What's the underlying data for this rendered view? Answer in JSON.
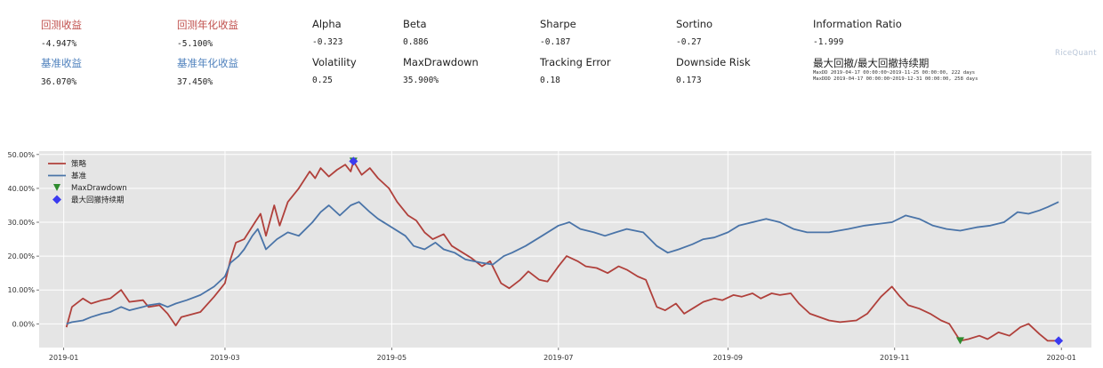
{
  "metrics": {
    "row1": [
      {
        "label": "回测收益",
        "value": "-4.947%",
        "color": "#c0504d"
      },
      {
        "label": "回测年化收益",
        "value": "-5.100%",
        "color": "#c0504d"
      },
      {
        "label": "Alpha",
        "value": "-0.323",
        "color": "#222222"
      },
      {
        "label": "Beta",
        "value": "0.886",
        "color": "#222222"
      },
      {
        "label": "Sharpe",
        "value": "-0.187",
        "color": "#222222"
      },
      {
        "label": "Sortino",
        "value": "-0.27",
        "color": "#222222"
      },
      {
        "label": "Information Ratio",
        "value": "-1.999",
        "color": "#222222"
      }
    ],
    "row2": [
      {
        "label": "基准收益",
        "value": "36.070%",
        "color": "#4f81bd"
      },
      {
        "label": "基准年化收益",
        "value": "37.450%",
        "color": "#4f81bd"
      },
      {
        "label": "Volatility",
        "value": "0.25",
        "color": "#222222"
      },
      {
        "label": "MaxDrawdown",
        "value": "35.900%",
        "color": "#222222"
      },
      {
        "label": "Tracking Error",
        "value": "0.18",
        "color": "#222222"
      },
      {
        "label": "Downside Risk",
        "value": "0.173",
        "color": "#222222"
      }
    ],
    "drawdown_title": "最大回撤/最大回撤持续期",
    "maxdd_line": "MaxDD  2019-04-17 00:00:00~2019-11-25 00:00:00, 222 days",
    "maxddd_line": "MaxDDD 2019-04-17 00:00:00~2019-12-31 00:00:00, 258 days"
  },
  "watermark": "RiceQuant",
  "chart_data": {
    "type": "line",
    "x_ticks": [
      "2019-01",
      "2019-03",
      "2019-05",
      "2019-07",
      "2019-09",
      "2019-11",
      "2020-01"
    ],
    "y_ticks": [
      "50.00%",
      "40.00%",
      "30.00%",
      "20.00%",
      "10.00%",
      "0.00%"
    ],
    "ylim": [
      -7,
      51
    ],
    "xlim": [
      "2018-12-23",
      "2020-01-12"
    ],
    "grid": true,
    "legend_position": "top-left",
    "legend": [
      "策略",
      "基准",
      "MaxDrawdown",
      "最大回撤持续期"
    ],
    "colors": {
      "strategy": "#b0403b",
      "benchmark": "#4a74a8",
      "maxdrawdown": "#2e8b2e",
      "maxddd": "#3b3bf0",
      "plot_bg": "#e5e5e5"
    },
    "series": [
      {
        "name": "策略",
        "points": [
          [
            "2019-01-02",
            -1
          ],
          [
            "2019-01-04",
            5
          ],
          [
            "2019-01-08",
            7.5
          ],
          [
            "2019-01-11",
            6
          ],
          [
            "2019-01-15",
            7
          ],
          [
            "2019-01-18",
            7.5
          ],
          [
            "2019-01-22",
            10
          ],
          [
            "2019-01-25",
            6.5
          ],
          [
            "2019-01-30",
            7
          ],
          [
            "2019-02-01",
            5
          ],
          [
            "2019-02-05",
            5.5
          ],
          [
            "2019-02-08",
            3
          ],
          [
            "2019-02-11",
            -0.5
          ],
          [
            "2019-02-13",
            2
          ],
          [
            "2019-02-20",
            3.5
          ],
          [
            "2019-02-25",
            8
          ],
          [
            "2019-02-27",
            10
          ],
          [
            "2019-03-01",
            12
          ],
          [
            "2019-03-03",
            19
          ],
          [
            "2019-03-05",
            24
          ],
          [
            "2019-03-08",
            25
          ],
          [
            "2019-03-12",
            30
          ],
          [
            "2019-03-14",
            32.5
          ],
          [
            "2019-03-16",
            26
          ],
          [
            "2019-03-19",
            35
          ],
          [
            "2019-03-21",
            29
          ],
          [
            "2019-03-24",
            36
          ],
          [
            "2019-03-28",
            40
          ],
          [
            "2019-04-01",
            45
          ],
          [
            "2019-04-03",
            43
          ],
          [
            "2019-04-05",
            46
          ],
          [
            "2019-04-08",
            43.5
          ],
          [
            "2019-04-11",
            45.5
          ],
          [
            "2019-04-14",
            47
          ],
          [
            "2019-04-16",
            45
          ],
          [
            "2019-04-17",
            48
          ],
          [
            "2019-04-20",
            44
          ],
          [
            "2019-04-23",
            46
          ],
          [
            "2019-04-26",
            43
          ],
          [
            "2019-04-30",
            40
          ],
          [
            "2019-05-03",
            36
          ],
          [
            "2019-05-07",
            32
          ],
          [
            "2019-05-10",
            30.5
          ],
          [
            "2019-05-13",
            27
          ],
          [
            "2019-05-16",
            25
          ],
          [
            "2019-05-20",
            26.5
          ],
          [
            "2019-05-23",
            23
          ],
          [
            "2019-05-27",
            21
          ],
          [
            "2019-05-30",
            19.5
          ],
          [
            "2019-06-03",
            17
          ],
          [
            "2019-06-06",
            18.5
          ],
          [
            "2019-06-10",
            12
          ],
          [
            "2019-06-13",
            10.5
          ],
          [
            "2019-06-17",
            13
          ],
          [
            "2019-06-20",
            15.5
          ],
          [
            "2019-06-24",
            13
          ],
          [
            "2019-06-27",
            12.5
          ],
          [
            "2019-07-01",
            17
          ],
          [
            "2019-07-04",
            20
          ],
          [
            "2019-07-08",
            18.5
          ],
          [
            "2019-07-11",
            17
          ],
          [
            "2019-07-15",
            16.5
          ],
          [
            "2019-07-19",
            15
          ],
          [
            "2019-07-23",
            17
          ],
          [
            "2019-07-26",
            16
          ],
          [
            "2019-07-30",
            14
          ],
          [
            "2019-08-02",
            13
          ],
          [
            "2019-08-06",
            5
          ],
          [
            "2019-08-09",
            4
          ],
          [
            "2019-08-13",
            6
          ],
          [
            "2019-08-16",
            3
          ],
          [
            "2019-08-20",
            5
          ],
          [
            "2019-08-23",
            6.5
          ],
          [
            "2019-08-27",
            7.5
          ],
          [
            "2019-08-30",
            7
          ],
          [
            "2019-09-03",
            8.5
          ],
          [
            "2019-09-06",
            8
          ],
          [
            "2019-09-10",
            9
          ],
          [
            "2019-09-13",
            7.5
          ],
          [
            "2019-09-17",
            9
          ],
          [
            "2019-09-20",
            8.5
          ],
          [
            "2019-09-24",
            9
          ],
          [
            "2019-09-27",
            6
          ],
          [
            "2019-10-01",
            3
          ],
          [
            "2019-10-08",
            1
          ],
          [
            "2019-10-12",
            0.5
          ],
          [
            "2019-10-18",
            1
          ],
          [
            "2019-10-22",
            3
          ],
          [
            "2019-10-27",
            8
          ],
          [
            "2019-10-31",
            11
          ],
          [
            "2019-11-03",
            8
          ],
          [
            "2019-11-06",
            5.5
          ],
          [
            "2019-11-10",
            4.5
          ],
          [
            "2019-11-14",
            3
          ],
          [
            "2019-11-18",
            1
          ],
          [
            "2019-11-21",
            0
          ],
          [
            "2019-11-25",
            -5
          ],
          [
            "2019-11-28",
            -4.5
          ],
          [
            "2019-12-02",
            -3.5
          ],
          [
            "2019-12-05",
            -4.5
          ],
          [
            "2019-12-09",
            -2.5
          ],
          [
            "2019-12-13",
            -3.5
          ],
          [
            "2019-12-17",
            -1
          ],
          [
            "2019-12-20",
            0
          ],
          [
            "2019-12-24",
            -3
          ],
          [
            "2019-12-27",
            -5
          ],
          [
            "2019-12-31",
            -5
          ]
        ]
      },
      {
        "name": "基准",
        "points": [
          [
            "2019-01-02",
            0
          ],
          [
            "2019-01-04",
            0.5
          ],
          [
            "2019-01-08",
            1
          ],
          [
            "2019-01-11",
            2
          ],
          [
            "2019-01-15",
            3
          ],
          [
            "2019-01-18",
            3.5
          ],
          [
            "2019-01-22",
            5
          ],
          [
            "2019-01-25",
            4
          ],
          [
            "2019-01-30",
            5
          ],
          [
            "2019-02-01",
            5.5
          ],
          [
            "2019-02-05",
            6
          ],
          [
            "2019-02-08",
            5
          ],
          [
            "2019-02-11",
            6
          ],
          [
            "2019-02-15",
            7
          ],
          [
            "2019-02-20",
            8.5
          ],
          [
            "2019-02-25",
            11
          ],
          [
            "2019-03-01",
            14
          ],
          [
            "2019-03-03",
            18
          ],
          [
            "2019-03-06",
            20
          ],
          [
            "2019-03-08",
            22
          ],
          [
            "2019-03-11",
            26
          ],
          [
            "2019-03-13",
            28
          ],
          [
            "2019-03-16",
            22
          ],
          [
            "2019-03-20",
            25
          ],
          [
            "2019-03-24",
            27
          ],
          [
            "2019-03-28",
            26
          ],
          [
            "2019-04-02",
            30
          ],
          [
            "2019-04-05",
            33
          ],
          [
            "2019-04-08",
            35
          ],
          [
            "2019-04-12",
            32
          ],
          [
            "2019-04-16",
            35
          ],
          [
            "2019-04-19",
            36
          ],
          [
            "2019-04-23",
            33
          ],
          [
            "2019-04-26",
            31
          ],
          [
            "2019-04-30",
            29
          ],
          [
            "2019-05-06",
            26
          ],
          [
            "2019-05-09",
            23
          ],
          [
            "2019-05-13",
            22
          ],
          [
            "2019-05-17",
            24
          ],
          [
            "2019-05-20",
            22
          ],
          [
            "2019-05-24",
            21
          ],
          [
            "2019-05-28",
            19
          ],
          [
            "2019-06-03",
            18
          ],
          [
            "2019-06-07",
            17.5
          ],
          [
            "2019-06-11",
            20
          ],
          [
            "2019-06-14",
            21
          ],
          [
            "2019-06-19",
            23
          ],
          [
            "2019-06-25",
            26
          ],
          [
            "2019-07-01",
            29
          ],
          [
            "2019-07-05",
            30
          ],
          [
            "2019-07-09",
            28
          ],
          [
            "2019-07-14",
            27
          ],
          [
            "2019-07-18",
            26
          ],
          [
            "2019-07-22",
            27
          ],
          [
            "2019-07-26",
            28
          ],
          [
            "2019-08-01",
            27
          ],
          [
            "2019-08-06",
            23
          ],
          [
            "2019-08-10",
            21
          ],
          [
            "2019-08-14",
            22
          ],
          [
            "2019-08-19",
            23.5
          ],
          [
            "2019-08-23",
            25
          ],
          [
            "2019-08-27",
            25.5
          ],
          [
            "2019-09-01",
            27
          ],
          [
            "2019-09-05",
            29
          ],
          [
            "2019-09-10",
            30
          ],
          [
            "2019-09-15",
            31
          ],
          [
            "2019-09-20",
            30
          ],
          [
            "2019-09-25",
            28
          ],
          [
            "2019-09-30",
            27
          ],
          [
            "2019-10-08",
            27
          ],
          [
            "2019-10-15",
            28
          ],
          [
            "2019-10-21",
            29
          ],
          [
            "2019-10-26",
            29.5
          ],
          [
            "2019-10-31",
            30
          ],
          [
            "2019-11-05",
            32
          ],
          [
            "2019-11-10",
            31
          ],
          [
            "2019-11-15",
            29
          ],
          [
            "2019-11-20",
            28
          ],
          [
            "2019-11-25",
            27.5
          ],
          [
            "2019-12-01",
            28.5
          ],
          [
            "2019-12-06",
            29
          ],
          [
            "2019-12-11",
            30
          ],
          [
            "2019-12-16",
            33
          ],
          [
            "2019-12-20",
            32.5
          ],
          [
            "2019-12-24",
            33.5
          ],
          [
            "2019-12-27",
            34.5
          ],
          [
            "2019-12-31",
            36
          ]
        ]
      }
    ],
    "markers": [
      {
        "name": "MaxDrawdown",
        "shape": "triangle-down",
        "points": [
          [
            "2019-04-17",
            48
          ],
          [
            "2019-11-25",
            -5
          ]
        ]
      },
      {
        "name": "最大回撤持续期",
        "shape": "diamond",
        "points": [
          [
            "2019-04-17",
            48
          ],
          [
            "2019-12-31",
            -5
          ]
        ]
      }
    ]
  }
}
